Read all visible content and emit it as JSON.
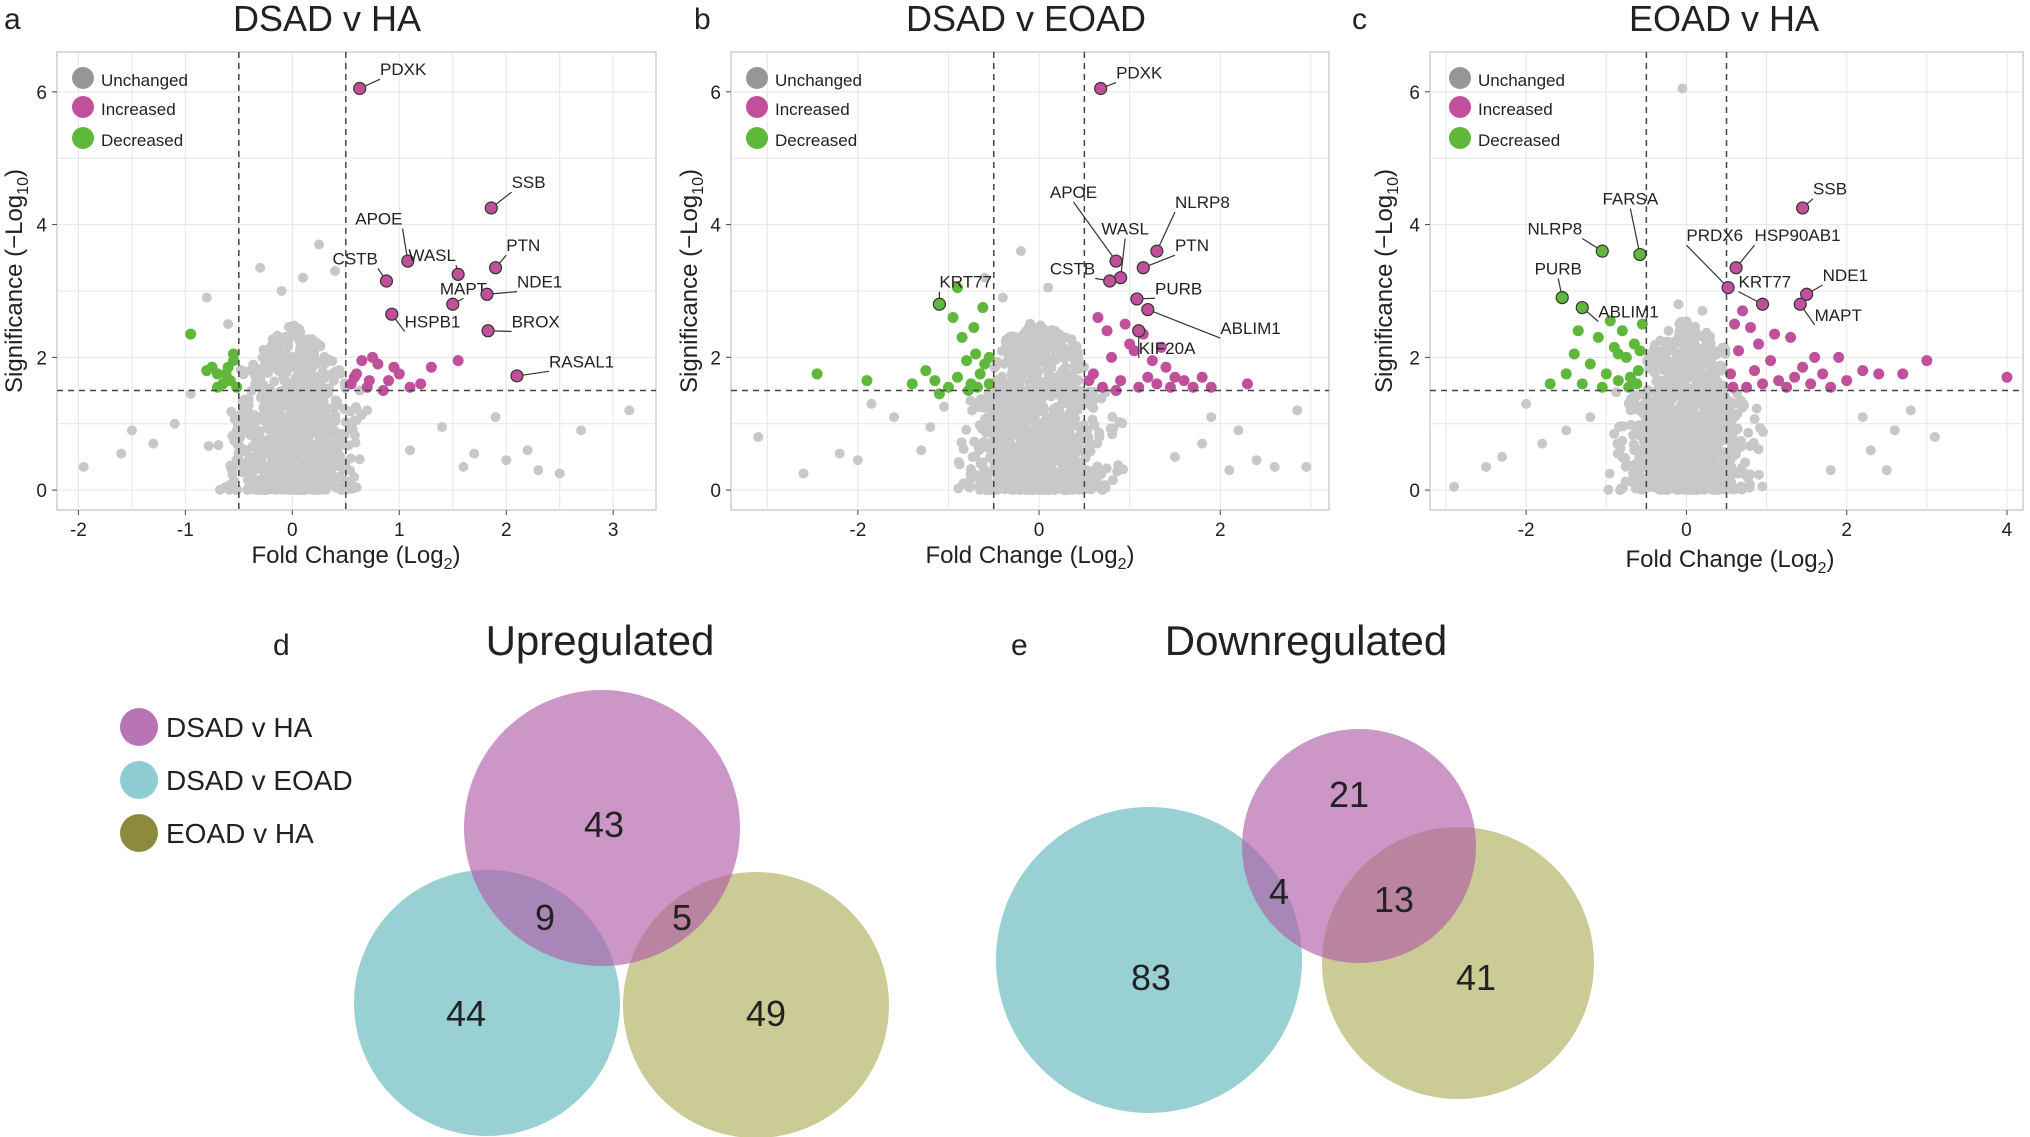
{
  "figure": {
    "legend_keys": {
      "unchanged": "Unchanged",
      "increased": "Increased",
      "decreased": "Decreased"
    },
    "venn_legend": [
      "DSAD v HA",
      "DSAD v EOAD",
      "EOAD v HA"
    ]
  },
  "colors": {
    "unchanged_key": "#969696",
    "unchanged": "#c8c8c8",
    "increased": "#c0509a",
    "decreased": "#5fb83c",
    "venn_pink": "#c078b8",
    "venn_teal": "#7cc3c6",
    "venn_olive": "#bdbd78",
    "legend_pink": "#b874b4",
    "legend_teal": "#8cccd2",
    "legend_olive": "#8c8a3c",
    "grid": "#e6e6e6",
    "panel_border": "#cfcfcf",
    "text": "#222222"
  },
  "chart_data": [
    {
      "panel": "a",
      "type": "scatter",
      "title": "DSAD v HA",
      "xlabel": "Fold Change (Log",
      "ylabel": "Significance (−Log",
      "sub_x": "2",
      "sub_y": "10",
      "xlim": [
        -2.2,
        3.4
      ],
      "ylim": [
        -0.3,
        6.6
      ],
      "xticks": [
        -2,
        -1,
        0,
        1,
        2,
        3
      ],
      "xtick_labels": [
        "-2",
        "-1",
        "0",
        "1",
        "2",
        "3"
      ],
      "yticks": [
        0,
        2,
        4,
        6
      ],
      "ytick_labels": [
        "0",
        "2",
        "4",
        "6"
      ],
      "thresholds": {
        "x": [
          -0.5,
          0.5
        ],
        "y": 1.5
      },
      "cloud": {
        "xspread": 0.4,
        "maxy": 2.5,
        "n": 900,
        "seed": 11
      },
      "unchanged_outliers": [
        [
          -1.95,
          0.35
        ],
        [
          -1.6,
          0.55
        ],
        [
          -1.3,
          0.7
        ],
        [
          -1.1,
          1.0
        ],
        [
          -0.95,
          1.45
        ],
        [
          -0.8,
          2.9
        ],
        [
          -0.6,
          2.5
        ],
        [
          0.25,
          3.7
        ],
        [
          0.1,
          3.2
        ],
        [
          -0.3,
          3.35
        ],
        [
          -0.1,
          3.0
        ],
        [
          0.4,
          3.3
        ],
        [
          0.7,
          1.2
        ],
        [
          1.1,
          0.6
        ],
        [
          1.4,
          0.95
        ],
        [
          1.7,
          0.55
        ],
        [
          2.0,
          0.45
        ],
        [
          2.3,
          0.3
        ],
        [
          2.5,
          0.25
        ],
        [
          3.15,
          1.2
        ],
        [
          2.7,
          0.9
        ],
        [
          1.9,
          1.1
        ],
        [
          -1.5,
          0.9
        ],
        [
          1.6,
          0.35
        ],
        [
          2.2,
          0.6
        ]
      ],
      "increased_extra": [
        [
          0.6,
          1.75
        ],
        [
          0.7,
          1.55
        ],
        [
          0.8,
          1.9
        ],
        [
          0.9,
          1.65
        ],
        [
          0.75,
          2.0
        ],
        [
          0.85,
          1.5
        ],
        [
          1.0,
          1.75
        ],
        [
          1.2,
          1.6
        ],
        [
          1.3,
          1.85
        ],
        [
          0.55,
          1.6
        ],
        [
          0.65,
          1.95
        ],
        [
          0.95,
          1.85
        ],
        [
          0.58,
          1.7
        ],
        [
          1.55,
          1.95
        ],
        [
          0.72,
          1.65
        ],
        [
          1.1,
          1.55
        ]
      ],
      "decreased": [
        [
          -0.95,
          2.35
        ],
        [
          -0.75,
          1.85
        ],
        [
          -0.7,
          1.75
        ],
        [
          -0.65,
          1.6
        ],
        [
          -0.6,
          1.85
        ],
        [
          -0.55,
          1.95
        ],
        [
          -0.7,
          1.55
        ],
        [
          -0.8,
          1.8
        ],
        [
          -0.58,
          1.65
        ],
        [
          -0.62,
          1.75
        ],
        [
          -0.52,
          1.55
        ],
        [
          -0.55,
          2.05
        ]
      ],
      "labeled": [
        {
          "label": "PDXK",
          "x": 0.63,
          "y": 6.05,
          "lx": 0.82,
          "ly": 6.25,
          "anchor": "start"
        },
        {
          "label": "SSB",
          "x": 1.86,
          "y": 4.25,
          "lx": 2.05,
          "ly": 4.55,
          "anchor": "start"
        },
        {
          "label": "APOE",
          "x": 1.08,
          "y": 3.45,
          "lx": 1.03,
          "ly": 4.0,
          "anchor": "end"
        },
        {
          "label": "WASL",
          "x": 1.55,
          "y": 3.25,
          "lx": 1.53,
          "ly": 3.45,
          "anchor": "end"
        },
        {
          "label": "PTN",
          "x": 1.9,
          "y": 3.35,
          "lx": 2.0,
          "ly": 3.6,
          "anchor": "start"
        },
        {
          "label": "CSTB",
          "x": 0.88,
          "y": 3.15,
          "lx": 0.8,
          "ly": 3.4,
          "anchor": "end"
        },
        {
          "label": "MAPT",
          "x": 1.5,
          "y": 2.8,
          "lx": 1.6,
          "ly": 2.95,
          "anchor": "middle"
        },
        {
          "label": "NDE1",
          "x": 1.82,
          "y": 2.95,
          "lx": 2.1,
          "ly": 3.05,
          "anchor": "start"
        },
        {
          "label": "HSPB1",
          "x": 0.93,
          "y": 2.65,
          "lx": 1.05,
          "ly": 2.45,
          "anchor": "start"
        },
        {
          "label": "BROX",
          "x": 1.83,
          "y": 2.4,
          "lx": 2.05,
          "ly": 2.45,
          "anchor": "start"
        },
        {
          "label": "RASAL1",
          "x": 2.1,
          "y": 1.72,
          "lx": 2.4,
          "ly": 1.85,
          "anchor": "start"
        }
      ]
    },
    {
      "panel": "b",
      "type": "scatter",
      "title": "DSAD v EOAD",
      "xlabel": "Fold Change (Log",
      "ylabel": "Significance (−Log",
      "sub_x": "2",
      "sub_y": "10",
      "xlim": [
        -3.4,
        3.2
      ],
      "ylim": [
        -0.3,
        6.6
      ],
      "xticks": [
        -2,
        0,
        2
      ],
      "xtick_labels": [
        "-2",
        "0",
        "2"
      ],
      "yticks": [
        0,
        2,
        4,
        6
      ],
      "ytick_labels": [
        "0",
        "2",
        "4",
        "6"
      ],
      "thresholds": {
        "x": [
          -0.5,
          0.5
        ],
        "y": 1.5
      },
      "cloud": {
        "xspread": 0.55,
        "maxy": 2.6,
        "n": 1000,
        "seed": 23
      },
      "unchanged_outliers": [
        [
          -3.1,
          0.8
        ],
        [
          -2.2,
          0.55
        ],
        [
          -2.0,
          0.45
        ],
        [
          -1.6,
          1.1
        ],
        [
          -1.3,
          0.6
        ],
        [
          -1.2,
          0.95
        ],
        [
          -0.6,
          3.2
        ],
        [
          -0.2,
          3.6
        ],
        [
          0.1,
          3.05
        ],
        [
          -0.4,
          2.9
        ],
        [
          1.5,
          0.5
        ],
        [
          1.8,
          0.7
        ],
        [
          2.1,
          0.3
        ],
        [
          2.4,
          0.45
        ],
        [
          2.6,
          0.35
        ],
        [
          2.85,
          1.2
        ],
        [
          2.95,
          0.35
        ],
        [
          1.9,
          1.1
        ],
        [
          -2.6,
          0.25
        ],
        [
          -1.85,
          1.3
        ],
        [
          2.2,
          0.9
        ]
      ],
      "increased_extra": [
        [
          0.6,
          1.75
        ],
        [
          0.7,
          1.55
        ],
        [
          0.8,
          2.0
        ],
        [
          0.9,
          1.65
        ],
        [
          1.0,
          2.2
        ],
        [
          1.1,
          1.55
        ],
        [
          1.2,
          1.7
        ],
        [
          1.3,
          1.6
        ],
        [
          1.4,
          1.85
        ],
        [
          1.5,
          1.7
        ],
        [
          1.6,
          1.65
        ],
        [
          1.7,
          1.55
        ],
        [
          1.8,
          1.7
        ],
        [
          1.9,
          1.55
        ],
        [
          2.3,
          1.6
        ],
        [
          0.75,
          2.4
        ],
        [
          0.95,
          2.5
        ],
        [
          1.05,
          2.1
        ],
        [
          1.15,
          2.35
        ],
        [
          0.65,
          2.6
        ],
        [
          0.85,
          1.5
        ],
        [
          1.25,
          1.95
        ],
        [
          1.35,
          2.15
        ],
        [
          0.55,
          1.65
        ],
        [
          1.45,
          1.55
        ]
      ],
      "decreased": [
        [
          -2.45,
          1.75
        ],
        [
          -1.9,
          1.65
        ],
        [
          -1.4,
          1.6
        ],
        [
          -1.25,
          1.8
        ],
        [
          -1.1,
          1.45
        ],
        [
          -1.0,
          1.55
        ],
        [
          -0.95,
          2.6
        ],
        [
          -0.9,
          1.7
        ],
        [
          -0.85,
          2.3
        ],
        [
          -0.8,
          1.95
        ],
        [
          -0.75,
          1.6
        ],
        [
          -0.7,
          2.05
        ],
        [
          -0.65,
          1.75
        ],
        [
          -0.6,
          1.9
        ],
        [
          -0.55,
          2.0
        ],
        [
          -0.9,
          3.05
        ],
        [
          -0.62,
          2.75
        ],
        [
          -0.78,
          1.5
        ],
        [
          -0.68,
          1.55
        ],
        [
          -0.55,
          1.6
        ],
        [
          -1.15,
          1.65
        ],
        [
          -0.72,
          2.45
        ]
      ],
      "labeled": [
        {
          "label": "PDXK",
          "x": 0.68,
          "y": 6.05,
          "lx": 0.85,
          "ly": 6.2,
          "anchor": "start"
        },
        {
          "label": "APOE",
          "x": 0.85,
          "y": 3.45,
          "lx": 0.38,
          "ly": 4.4,
          "anchor": "middle"
        },
        {
          "label": "WASL",
          "x": 0.9,
          "y": 3.2,
          "lx": 0.95,
          "ly": 3.85,
          "anchor": "middle"
        },
        {
          "label": "NLRP8",
          "x": 1.3,
          "y": 3.6,
          "lx": 1.5,
          "ly": 4.25,
          "anchor": "start"
        },
        {
          "label": "PTN",
          "x": 1.15,
          "y": 3.35,
          "lx": 1.5,
          "ly": 3.6,
          "anchor": "start"
        },
        {
          "label": "CSTB",
          "x": 0.78,
          "y": 3.15,
          "lx": 0.62,
          "ly": 3.25,
          "anchor": "end"
        },
        {
          "label": "PURB",
          "x": 1.08,
          "y": 2.88,
          "lx": 1.28,
          "ly": 2.95,
          "anchor": "start"
        },
        {
          "label": "ABLIM1",
          "x": 1.2,
          "y": 2.72,
          "lx": 2.0,
          "ly": 2.35,
          "anchor": "start"
        },
        {
          "label": "KIF20A",
          "x": 1.1,
          "y": 2.4,
          "lx": 1.1,
          "ly": 2.05,
          "anchor": "start"
        },
        {
          "label": "KRT77",
          "x": -1.1,
          "y": 2.8,
          "lx": -1.1,
          "ly": 3.05,
          "anchor": "start"
        }
      ]
    },
    {
      "panel": "c",
      "type": "scatter",
      "title": "EOAD v HA",
      "xlabel": "Fold Change (Log",
      "ylabel": "Significance (−Log",
      "sub_x": "2",
      "sub_y": "10",
      "xlim": [
        -3.2,
        4.2
      ],
      "ylim": [
        -0.3,
        6.6
      ],
      "xticks": [
        -2,
        0,
        2,
        4
      ],
      "xtick_labels": [
        "-2",
        "0",
        "2",
        "4"
      ],
      "yticks": [
        0,
        2,
        4,
        6
      ],
      "ytick_labels": [
        "0",
        "2",
        "4",
        "6"
      ],
      "thresholds": {
        "x": [
          -0.5,
          0.5
        ],
        "y": 1.5
      },
      "cloud": {
        "xspread": 0.55,
        "maxy": 2.6,
        "n": 1000,
        "seed": 37
      },
      "unchanged_outliers": [
        [
          -2.9,
          0.05
        ],
        [
          -2.3,
          0.5
        ],
        [
          -2.0,
          1.3
        ],
        [
          -1.8,
          0.7
        ],
        [
          -1.5,
          0.9
        ],
        [
          -0.05,
          6.05
        ],
        [
          -0.1,
          2.8
        ],
        [
          0.2,
          2.7
        ],
        [
          2.3,
          0.6
        ],
        [
          2.6,
          0.9
        ],
        [
          2.8,
          1.2
        ],
        [
          3.1,
          0.8
        ],
        [
          2.2,
          1.1
        ],
        [
          1.8,
          0.3
        ],
        [
          -1.2,
          1.1
        ],
        [
          2.5,
          0.3
        ],
        [
          -2.5,
          0.35
        ]
      ],
      "increased_extra": [
        [
          0.55,
          1.75
        ],
        [
          0.65,
          2.1
        ],
        [
          0.75,
          1.55
        ],
        [
          0.85,
          1.8
        ],
        [
          0.95,
          1.6
        ],
        [
          1.05,
          1.95
        ],
        [
          1.15,
          1.65
        ],
        [
          1.25,
          1.55
        ],
        [
          1.35,
          1.7
        ],
        [
          1.45,
          1.85
        ],
        [
          1.55,
          1.6
        ],
        [
          1.7,
          1.75
        ],
        [
          1.8,
          1.55
        ],
        [
          2.0,
          1.65
        ],
        [
          2.2,
          1.8
        ],
        [
          2.4,
          1.75
        ],
        [
          2.7,
          1.75
        ],
        [
          3.0,
          1.95
        ],
        [
          4.0,
          1.7
        ],
        [
          0.6,
          2.5
        ],
        [
          0.8,
          2.45
        ],
        [
          0.7,
          2.7
        ],
        [
          0.9,
          2.2
        ],
        [
          1.1,
          2.35
        ],
        [
          1.3,
          2.3
        ],
        [
          0.58,
          1.55
        ],
        [
          1.6,
          2.0
        ],
        [
          1.9,
          2.0
        ]
      ],
      "decreased": [
        [
          -1.7,
          1.6
        ],
        [
          -1.5,
          1.75
        ],
        [
          -1.4,
          2.05
        ],
        [
          -1.3,
          1.6
        ],
        [
          -1.2,
          1.9
        ],
        [
          -1.1,
          2.3
        ],
        [
          -1.0,
          1.75
        ],
        [
          -0.95,
          2.55
        ],
        [
          -0.9,
          2.15
        ],
        [
          -0.85,
          1.65
        ],
        [
          -0.8,
          2.4
        ],
        [
          -0.75,
          2.0
        ],
        [
          -0.7,
          1.7
        ],
        [
          -0.65,
          2.2
        ],
        [
          -0.6,
          1.8
        ],
        [
          -0.55,
          2.5
        ],
        [
          -0.62,
          1.6
        ],
        [
          -0.72,
          1.55
        ],
        [
          -0.85,
          2.05
        ],
        [
          -1.05,
          1.55
        ],
        [
          -1.35,
          2.4
        ],
        [
          -0.58,
          2.1
        ]
      ],
      "labeled": [
        {
          "label": "SSB",
          "x": 1.45,
          "y": 4.25,
          "lx": 1.58,
          "ly": 4.45,
          "anchor": "start"
        },
        {
          "label": "FARSA",
          "x": -0.58,
          "y": 3.55,
          "lx": -0.7,
          "ly": 4.3,
          "anchor": "middle"
        },
        {
          "label": "NLRP8",
          "x": -1.05,
          "y": 3.6,
          "lx": -1.3,
          "ly": 3.85,
          "anchor": "end"
        },
        {
          "label": "PRDX6",
          "x": 0.52,
          "y": 3.05,
          "lx": 0.0,
          "ly": 3.75,
          "anchor": "start"
        },
        {
          "label": "HSP90AB1",
          "x": 0.62,
          "y": 3.35,
          "lx": 0.85,
          "ly": 3.75,
          "anchor": "start"
        },
        {
          "label": "KRT77",
          "x": 0.95,
          "y": 2.8,
          "lx": 0.65,
          "ly": 3.05,
          "anchor": "start"
        },
        {
          "label": "NDE1",
          "x": 1.5,
          "y": 2.95,
          "lx": 1.7,
          "ly": 3.15,
          "anchor": "start"
        },
        {
          "label": "MAPT",
          "x": 1.42,
          "y": 2.8,
          "lx": 1.6,
          "ly": 2.55,
          "anchor": "start"
        },
        {
          "label": "PURB",
          "x": -1.55,
          "y": 2.9,
          "lx": -1.6,
          "ly": 3.25,
          "anchor": "middle"
        },
        {
          "label": "ABLIM1",
          "x": -1.3,
          "y": 2.75,
          "lx": -1.1,
          "ly": 2.6,
          "anchor": "start"
        }
      ]
    },
    {
      "panel": "d",
      "type": "venn",
      "title": "Upregulated",
      "circles": [
        {
          "set": "DSAD v HA",
          "color": "pink"
        },
        {
          "set": "DSAD v EOAD",
          "color": "teal"
        },
        {
          "set": "EOAD v HA",
          "color": "olive"
        }
      ],
      "counts": {
        "only_dsad_ha": "43",
        "only_dsad_eoad": "44",
        "only_eoad_ha": "49",
        "dsad_ha_and_dsad_eoad": "9",
        "dsad_ha_and_eoad_ha": "5"
      }
    },
    {
      "panel": "e",
      "type": "venn",
      "title": "Downregulated",
      "circles": [
        {
          "set": "DSAD v HA",
          "color": "pink"
        },
        {
          "set": "DSAD v EOAD",
          "color": "teal"
        },
        {
          "set": "EOAD v HA",
          "color": "olive"
        }
      ],
      "counts": {
        "only_dsad_ha": "21",
        "only_dsad_eoad": "83",
        "only_eoad_ha": "41",
        "dsad_ha_and_dsad_eoad": "4",
        "dsad_ha_and_eoad_ha": "13"
      }
    }
  ]
}
